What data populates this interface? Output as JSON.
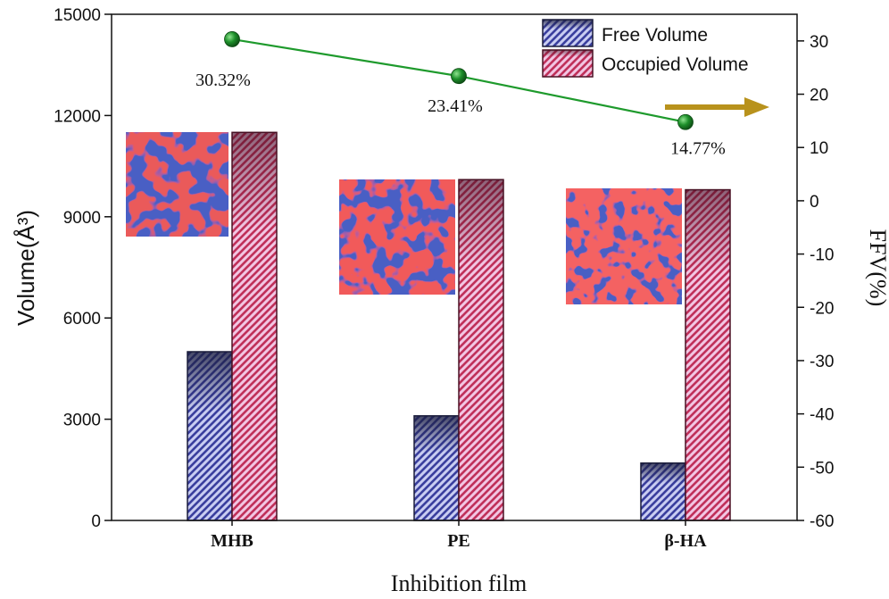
{
  "chart_data": {
    "type": "bar",
    "xlabel": "Inhibition film",
    "ylabel": "Volume(Å³)",
    "y2label": "FFV(%)",
    "categories": [
      "MHB",
      "PE",
      "β-HA"
    ],
    "ylim": [
      0,
      15000
    ],
    "y2lim": [
      -60,
      35
    ],
    "yticks": [
      0,
      3000,
      6000,
      9000,
      12000,
      15000
    ],
    "y2ticks": [
      -60,
      -50,
      -40,
      -30,
      -20,
      -10,
      0,
      10,
      20,
      30
    ],
    "series": [
      {
        "name": "Free Volume",
        "values": [
          5000,
          3100,
          1700
        ],
        "color": "#3a3f9e"
      },
      {
        "name": "Occupied Volume",
        "values": [
          11500,
          10100,
          9800
        ],
        "color": "#c0305a"
      }
    ],
    "ffv": {
      "name": "FFV",
      "values": [
        30.32,
        23.41,
        14.77
      ],
      "labels": [
        "30.32%",
        "23.41%",
        "14.77%"
      ],
      "line_color": "#1e9a2c",
      "marker_color": "#1d8f2a"
    },
    "arrow_color": "#b8921c",
    "legend_position": "top-right",
    "insets": [
      "MHB free-volume map",
      "PE free-volume map",
      "β-HA free-volume map"
    ]
  }
}
